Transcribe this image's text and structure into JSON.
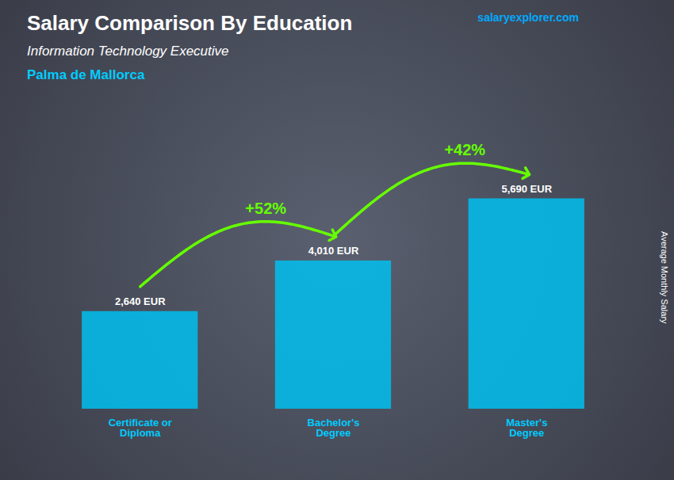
{
  "chart_data": {
    "type": "bar",
    "title": "Salary Comparison By Education",
    "subtitle": "Information Technology Executive",
    "annotations": [
      "Palma de Mallorca",
      "salaryexplorer.com",
      {
        "text": "+52%",
        "from": "Certificate or\nDiploma",
        "to": "Bachelor's\nDegree",
        "color": "#66FF00"
      },
      {
        "text": "+42%",
        "from": "Bachelor's\nDegree",
        "to": "Master's\nDegree",
        "color": "#66FF00"
      }
    ],
    "ylabel": "Average Monthly Salary",
    "categories": [
      "Certificate or\nDiploma",
      "Bachelor's\nDegree",
      "Master's\nDegree"
    ],
    "values": [
      2640,
      4010,
      5690
    ],
    "value_labels": [
      "2,640 EUR",
      "4,010 EUR",
      "5,690 EUR"
    ],
    "data_labels": true,
    "color": "#00BFEE",
    "ylim": [
      0,
      7500
    ],
    "tick_labels": false,
    "grid": false
  }
}
